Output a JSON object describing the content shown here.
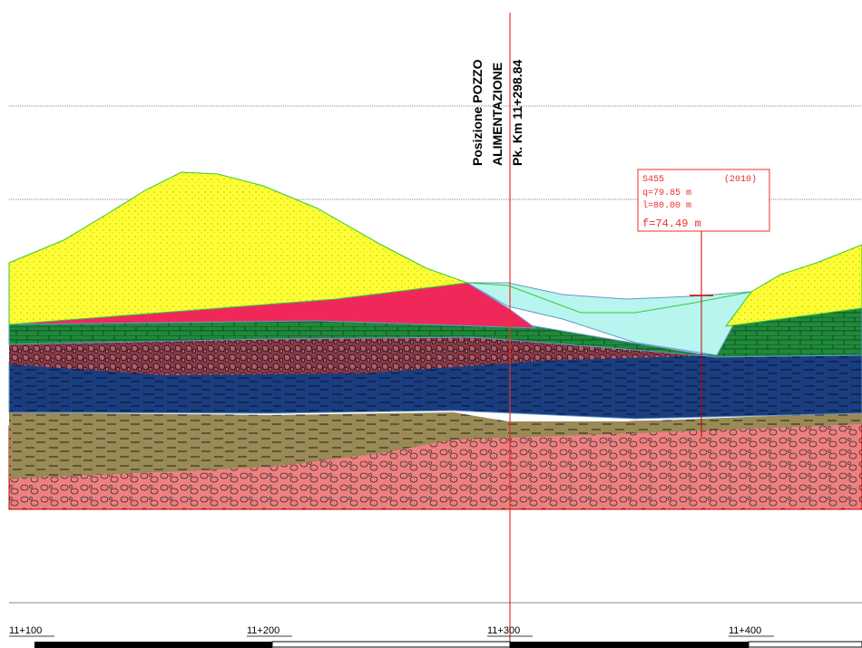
{
  "section_marker": {
    "lines": [
      "Posizione POZZO",
      "ALIMENTAZIONE",
      "Pk. Km 11+298.84"
    ]
  },
  "borehole": {
    "id": "S455",
    "year": "(2010)",
    "q": "q=79.85 m",
    "l": "l=80.00 m",
    "f": "f=74.49 m"
  },
  "chainages": [
    "11+100",
    "11+200",
    "11+300",
    "11+400"
  ]
}
